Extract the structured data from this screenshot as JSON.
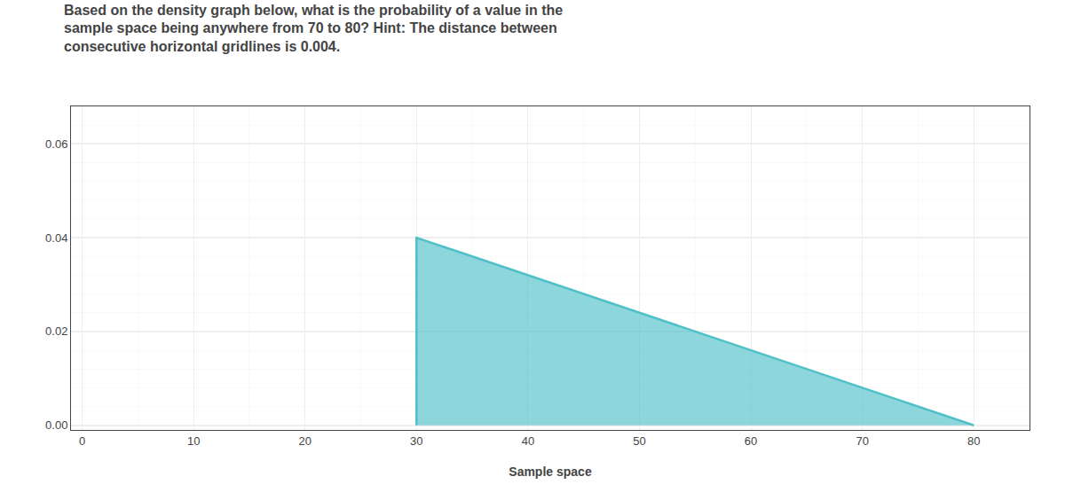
{
  "chart_data": {
    "type": "area",
    "title": "Based on the density graph below, what is the probability of a value in the\nsample space being anywhere from 70 to 80? Hint: The distance between\nconsecutive horizontal gridlines is 0.004.",
    "x_label": "Sample space",
    "x": [
      30,
      30,
      80
    ],
    "values": [
      0.0,
      0.04,
      0.0
    ],
    "color": "#50c0c8",
    "xlim": [
      -1,
      85
    ],
    "ylim": [
      -0.001,
      0.068
    ],
    "xticks": [
      0,
      10,
      20,
      30,
      40,
      50,
      60,
      70,
      80
    ],
    "yticks": [
      {
        "value": 0,
        "label": "0.00"
      },
      0.02,
      0.04,
      0.06
    ],
    "minor_xtick_step": 5,
    "minor_ytick_step": 0.004,
    "grid": true
  }
}
